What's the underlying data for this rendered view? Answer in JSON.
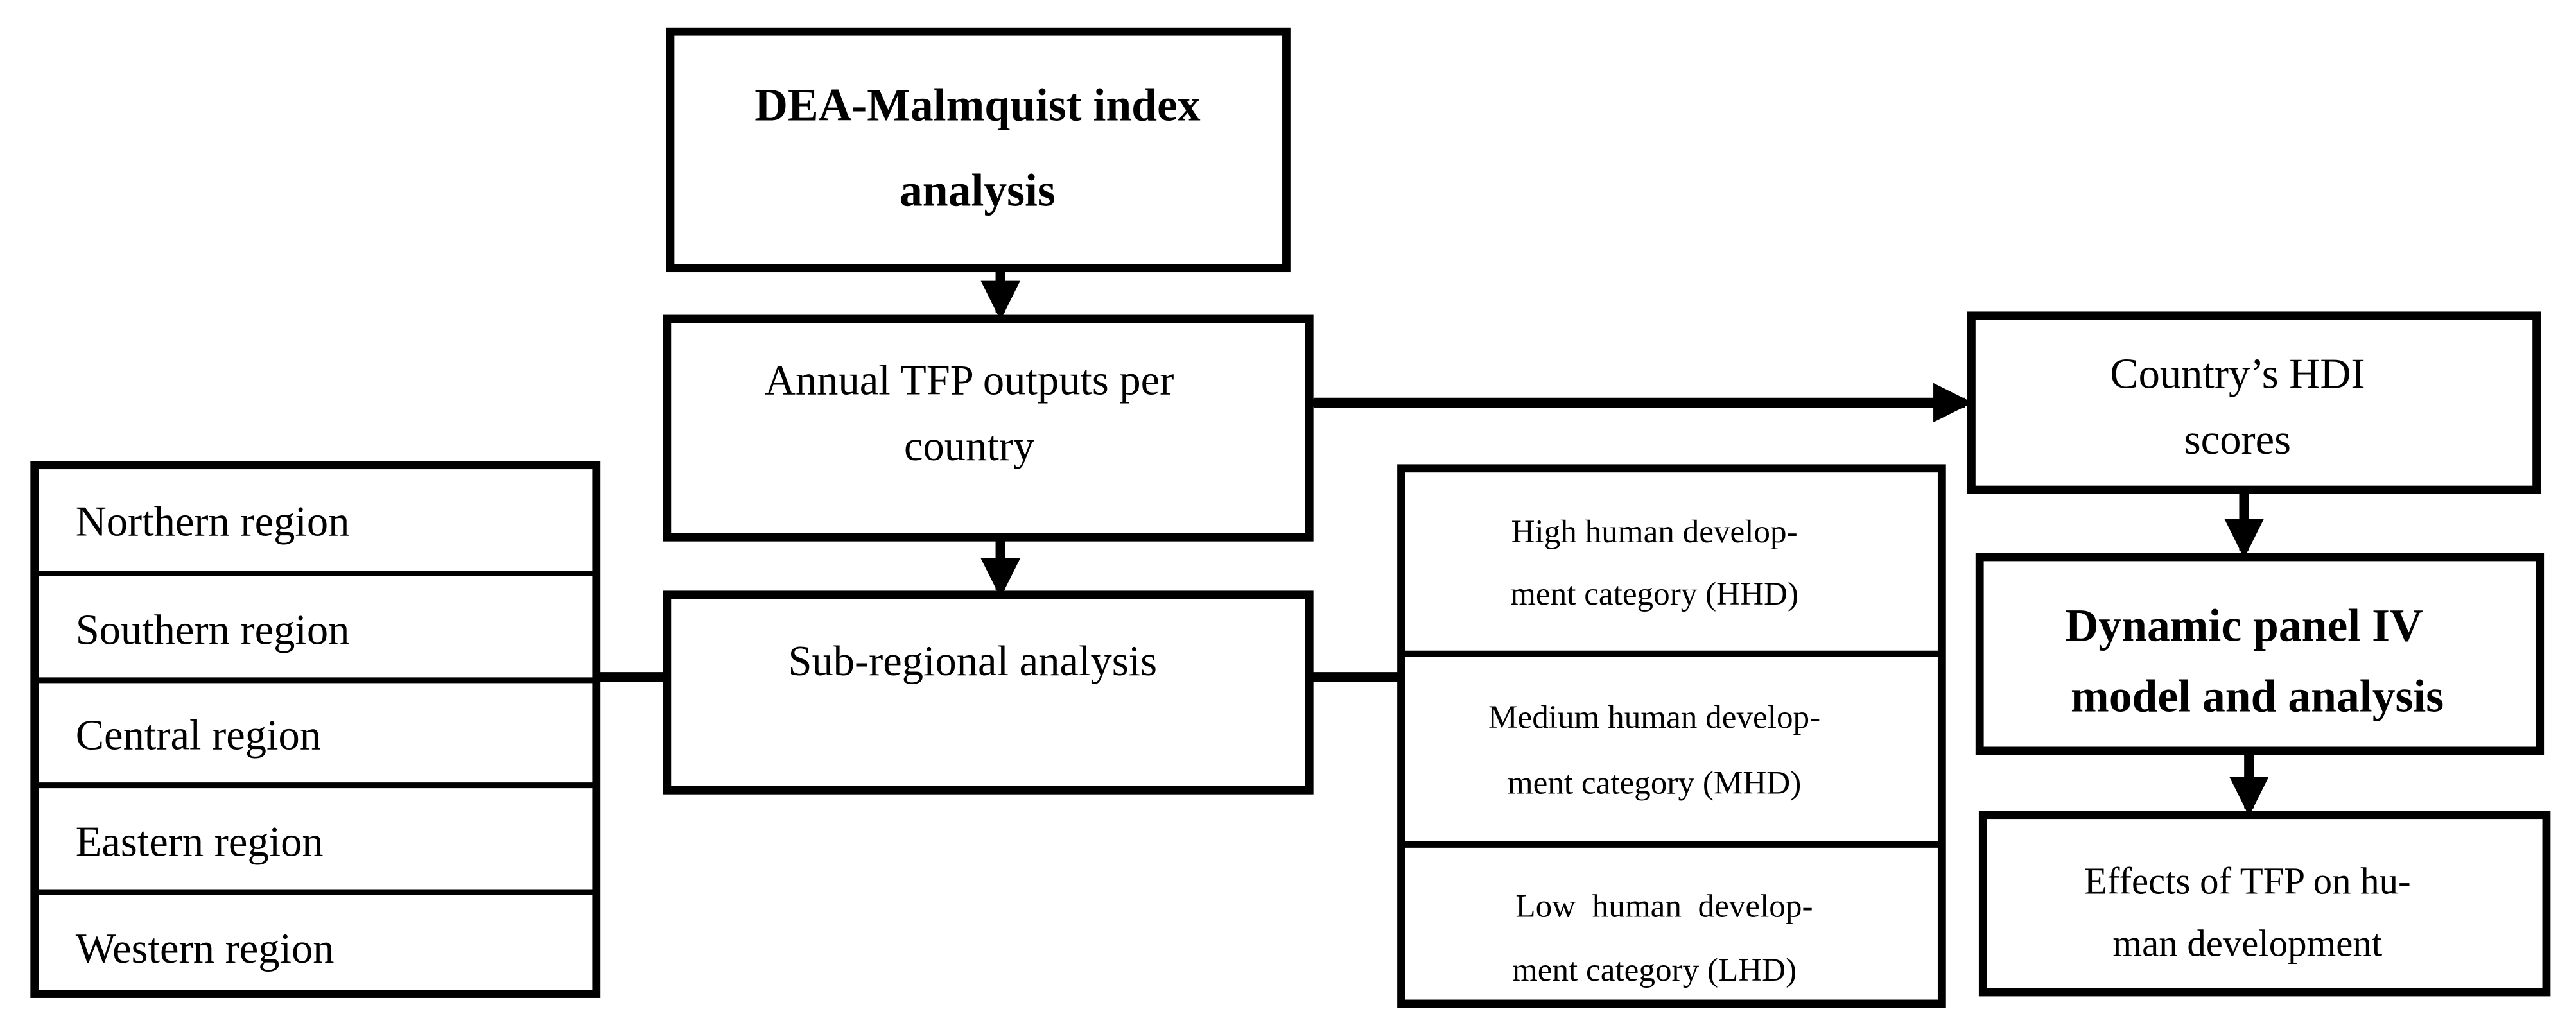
{
  "nodes": {
    "dea": {
      "line1": "DEA-Malmquist index",
      "line2": "analysis"
    },
    "tfp": {
      "line1": "Annual TFP outputs per",
      "line2": "country"
    },
    "subregional": {
      "line1": "Sub-regional analysis"
    },
    "hdi": {
      "line1": "Country’s HDI",
      "line2": "scores"
    },
    "dynamic": {
      "line1": "Dynamic panel IV",
      "line2": "model and analysis"
    },
    "effects": {
      "line1": "Effects of TFP on hu-",
      "line2": "man development"
    }
  },
  "regions": [
    "Northern region",
    "Southern region",
    "Central region",
    "Eastern region",
    "Western region"
  ],
  "categories": [
    {
      "line1": "High human develop-",
      "line2": "ment category (HHD)"
    },
    {
      "line1": "Medium human develop-",
      "line2": "ment category (MHD)"
    },
    {
      "line1": "Low  human  develop-",
      "line2": "ment category (LHD)"
    }
  ],
  "colors": {
    "stroke": "#000000",
    "background": "#ffffff"
  }
}
